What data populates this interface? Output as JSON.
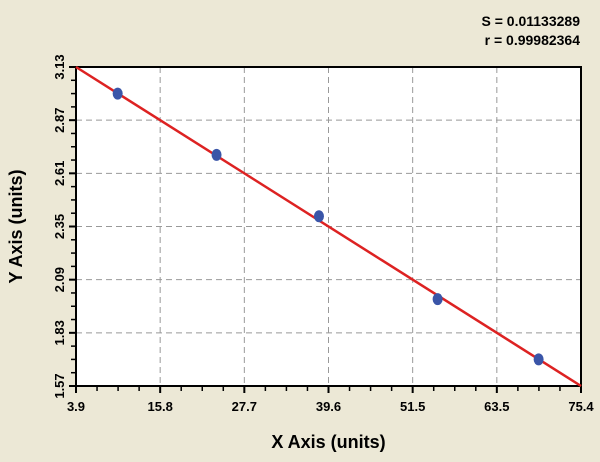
{
  "chart_data": {
    "type": "scatter",
    "title": "",
    "xlabel": "X Axis (units)",
    "ylabel": "Y Axis (units)",
    "xlim": [
      3.9,
      75.4
    ],
    "ylim": [
      1.57,
      3.13
    ],
    "xticks": [
      "3.9",
      "15.8",
      "27.7",
      "39.6",
      "51.5",
      "63.5",
      "75.4"
    ],
    "yticks": [
      "1.57",
      "1.83",
      "2.09",
      "2.35",
      "2.61",
      "2.87",
      "3.13"
    ],
    "grid": true,
    "points": [
      {
        "x": 9.8,
        "y": 3.0
      },
      {
        "x": 23.8,
        "y": 2.7
      },
      {
        "x": 38.3,
        "y": 2.4
      },
      {
        "x": 55.1,
        "y": 1.995
      },
      {
        "x": 69.4,
        "y": 1.7
      }
    ],
    "fit_line": {
      "x": [
        3.9,
        75.4
      ],
      "y": [
        3.13,
        1.57
      ]
    },
    "annotations": [
      "S = 0.01133289",
      "r = 0.99982364"
    ],
    "colors": {
      "points": "#3a55a8",
      "line": "#dd2222",
      "background": "#ece8d6",
      "plot": "#ffffff",
      "grid": "#999999"
    }
  }
}
